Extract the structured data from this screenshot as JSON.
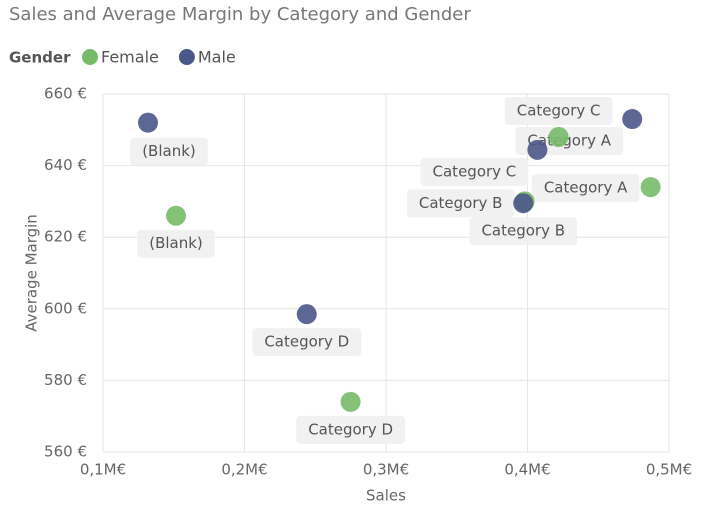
{
  "chart_data": {
    "type": "scatter",
    "title": "Sales and Average Margin by Category and Gender",
    "legend_title": "Gender",
    "x_label": "Sales",
    "y_label": "Average Margin",
    "xlim": [
      100000,
      500000
    ],
    "xticks": [
      {
        "value": 100000,
        "label": "0,1M€"
      },
      {
        "value": 200000,
        "label": "0,2M€"
      },
      {
        "value": 300000,
        "label": "0,3M€"
      },
      {
        "value": 400000,
        "label": "0,4M€"
      },
      {
        "value": 500000,
        "label": "0,5M€"
      }
    ],
    "ylim": [
      560,
      660
    ],
    "yticks": [
      {
        "value": 560,
        "label": "560 €"
      },
      {
        "value": 580,
        "label": "580 €"
      },
      {
        "value": 600,
        "label": "600 €"
      },
      {
        "value": 620,
        "label": "620 €"
      },
      {
        "value": 640,
        "label": "640 €"
      },
      {
        "value": 660,
        "label": "660 €"
      }
    ],
    "grid": true,
    "series": [
      {
        "name": "Female",
        "color": "#76bb68",
        "labels": [
          "(Blank)",
          "Category D",
          "Category A",
          "Category B",
          "Category C"
        ],
        "x": [
          151600,
          275000,
          487000,
          398000,
          422000
        ],
        "values": [
          626,
          574,
          634,
          630,
          648
        ]
      },
      {
        "name": "Male",
        "color": "#4b5689",
        "labels": [
          "(Blank)",
          "Category D",
          "Category A",
          "Category B",
          "Category C"
        ],
        "x": [
          131800,
          244000,
          474000,
          397000,
          407000
        ],
        "values": [
          652,
          598.5,
          653,
          629.5,
          644.4
        ]
      }
    ]
  }
}
